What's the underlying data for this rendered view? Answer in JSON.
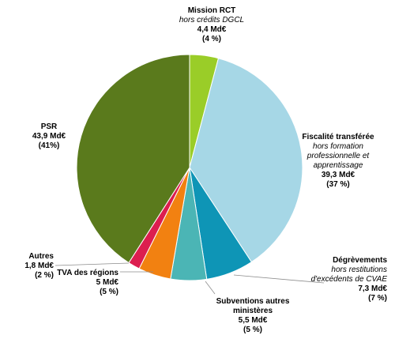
{
  "chart_data": {
    "type": "pie",
    "unit": "Md€",
    "slices": [
      {
        "label": "Mission RCT",
        "sublabel": [
          "hors crédits DGCL"
        ],
        "value": 4.4,
        "value_text": "4,4 Md€",
        "percent_text": "(4 %)",
        "color": "#9acd28"
      },
      {
        "label": "Fiscalité transférée",
        "sublabel": [
          "hors formation",
          "professionnelle et",
          "apprentissage"
        ],
        "value": 39.3,
        "value_text": "39,3 Md€",
        "percent_text": "(37 %)",
        "color": "#a6d7e6"
      },
      {
        "label": "Dégrèvements",
        "sublabel": [
          "hors restitutions",
          "d'excédents de CVAE"
        ],
        "value": 7.3,
        "value_text": "7,3 Md€",
        "percent_text": "(7 %)",
        "color": "#0e95b6"
      },
      {
        "label": "Subventions autres ministères",
        "label_lines": [
          "Subventions autres",
          "ministères"
        ],
        "sublabel": [],
        "value": 5.5,
        "value_text": "5,5 Md€",
        "percent_text": "(5 %)",
        "color": "#4bb5b5"
      },
      {
        "label": "TVA des régions",
        "sublabel": [],
        "value": 5,
        "value_text": "5 Md€",
        "percent_text": "(5 %)",
        "color": "#f28111"
      },
      {
        "label": "Autres",
        "sublabel": [],
        "value": 1.8,
        "value_text": "1,8 Md€",
        "percent_text": "(2 %)",
        "color": "#dc1e4f"
      },
      {
        "label": "PSR",
        "sublabel": [],
        "value": 43.9,
        "value_text": "43,9 Md€",
        "percent_text": "(41%)",
        "color": "#5a7a1c"
      }
    ]
  }
}
